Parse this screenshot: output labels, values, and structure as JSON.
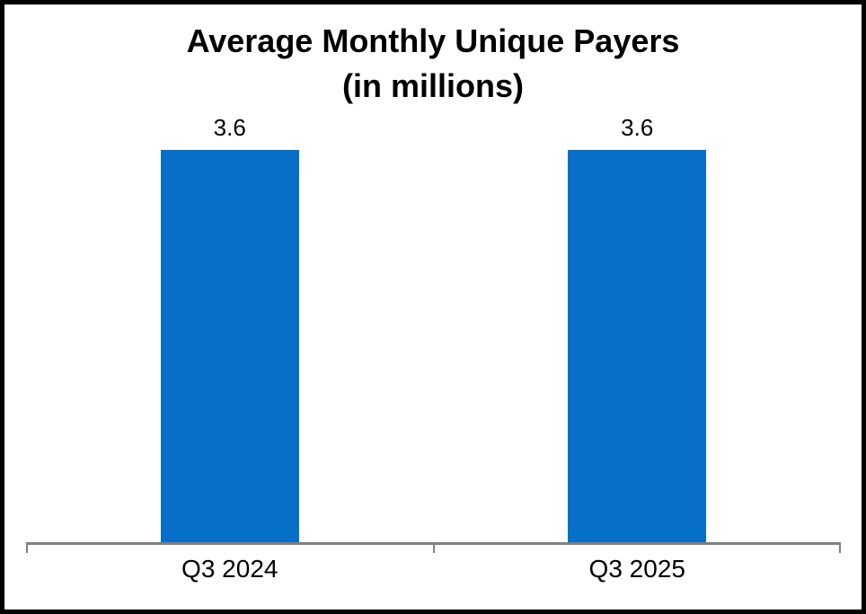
{
  "window": {
    "background": "#ffffff",
    "border_color": "#000000"
  },
  "chart_data": {
    "type": "bar",
    "title": "Average Monthly Unique Payers",
    "subtitle": "(in millions)",
    "categories": [
      "Q3 2024",
      "Q3 2025"
    ],
    "values": [
      3.6,
      3.6
    ],
    "data_labels": [
      "3.6",
      "3.6"
    ],
    "ylim": [
      0,
      4
    ],
    "xlabel": "",
    "ylabel": "",
    "grid": false,
    "legend": false,
    "y_axis_visible": false,
    "bar_color": "#0670C9",
    "axis_color": "#7f7f7f",
    "text_color": "#000000"
  }
}
